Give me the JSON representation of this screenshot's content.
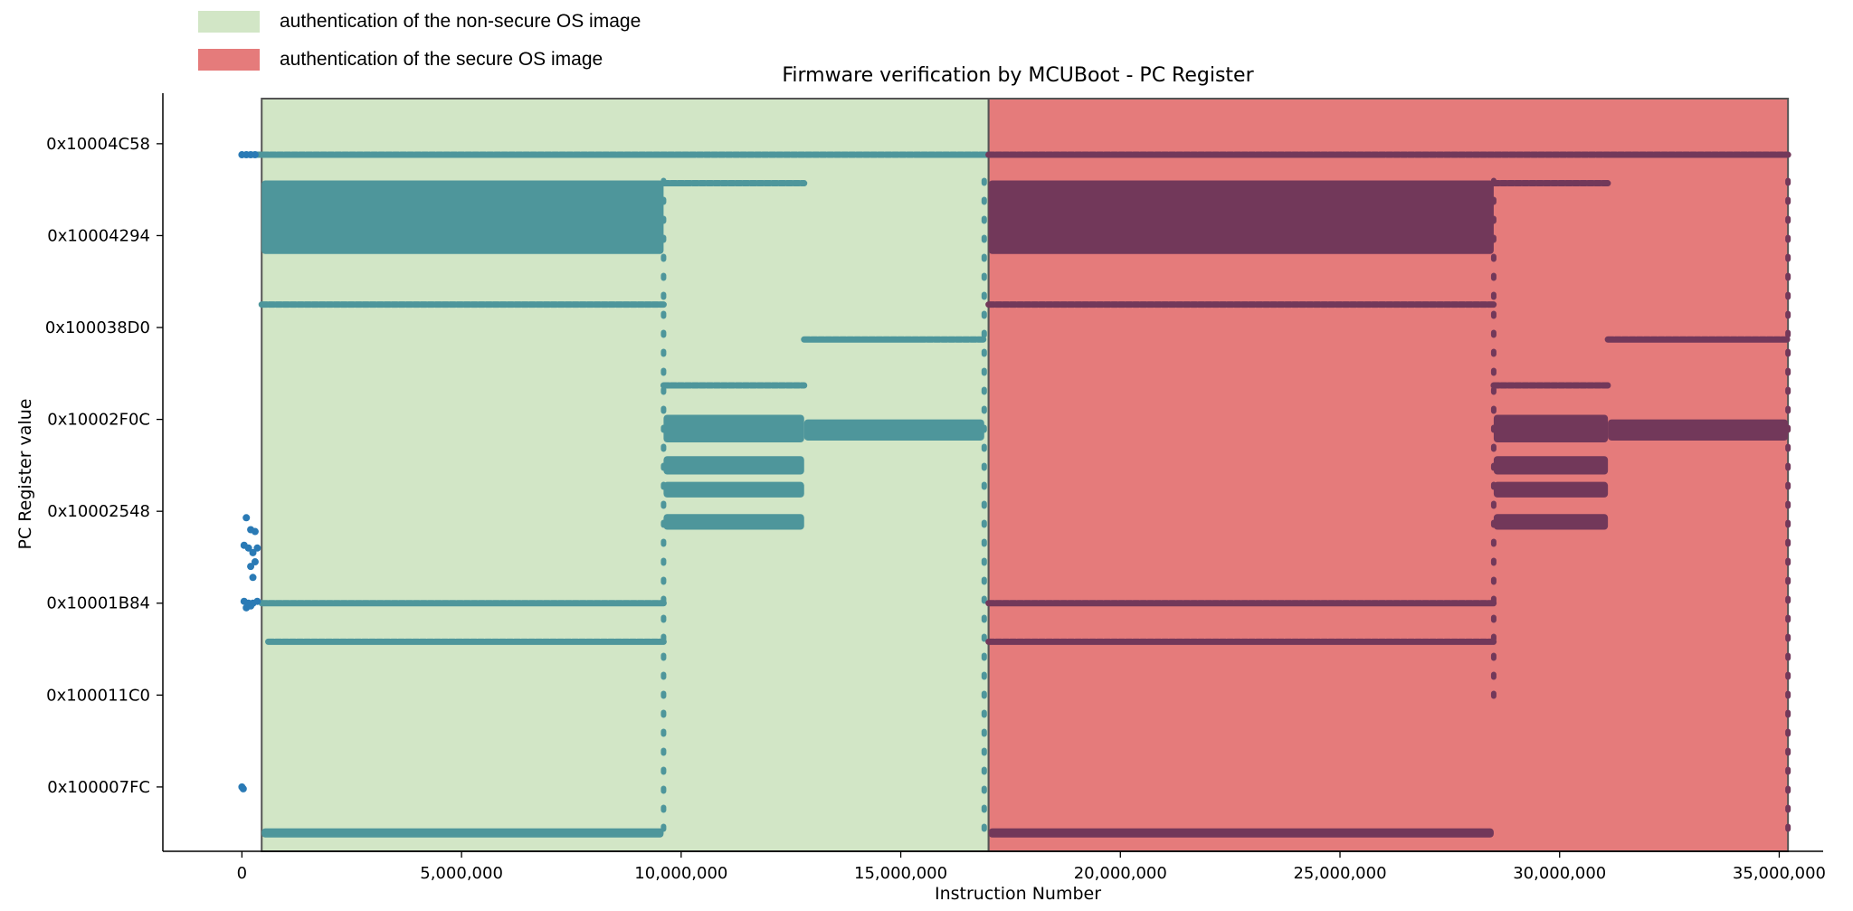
{
  "legend": [
    {
      "label": "authentication of the non-secure OS image",
      "color": "#d2e6c6"
    },
    {
      "label": "authentication of the secure OS image",
      "color": "#e57b7b"
    }
  ],
  "colors": {
    "nonsecure_points": "#4e969b",
    "secure_points": "#72385a",
    "outside_points": "#2a7ab5",
    "frame": "#555555"
  },
  "chart_data": {
    "type": "scatter",
    "title": "Firmware verification by MCUBoot - PC Register",
    "xlabel": "Instruction Number",
    "ylabel": "PC Register value",
    "xlim": [
      -1800000,
      36000000
    ],
    "xticks": [
      0,
      5000000,
      10000000,
      15000000,
      20000000,
      25000000,
      30000000,
      35000000
    ],
    "xtick_labels": [
      "0",
      "5,000,000",
      "10,000,000",
      "15,000,000",
      "20,000,000",
      "25,000,000",
      "30,000,000",
      "35,000,000"
    ],
    "ylim": [
      0.3,
      8.55
    ],
    "yticks": [
      1,
      2,
      3,
      4,
      5,
      6,
      7,
      8
    ],
    "ytick_labels": [
      "0x100007FC",
      "0x100011C0",
      "0x10001B84",
      "0x10002548",
      "0x10002F0C",
      "0x100038D0",
      "0x10004294",
      "0x10004C58"
    ],
    "regions": [
      {
        "name": "non-secure",
        "x_start": 450000,
        "x_end": 17000000
      },
      {
        "name": "secure",
        "x_start": 17000000,
        "x_end": 35200000
      }
    ],
    "series": [
      {
        "name": "non-secure OS image authentication",
        "bands": [
          {
            "type": "band",
            "x0": 450000,
            "x1": 9600000,
            "y0": 6.8,
            "y1": 7.6
          },
          {
            "type": "band",
            "x0": 9600000,
            "x1": 12800000,
            "y0": 4.75,
            "y1": 5.05
          },
          {
            "type": "band",
            "x0": 9600000,
            "x1": 12800000,
            "y0": 4.4,
            "y1": 4.6
          },
          {
            "type": "band",
            "x0": 9600000,
            "x1": 12800000,
            "y0": 4.15,
            "y1": 4.32
          },
          {
            "type": "band",
            "x0": 9600000,
            "x1": 12800000,
            "y0": 3.8,
            "y1": 3.97
          },
          {
            "type": "band",
            "x0": 12800000,
            "x1": 16900000,
            "y0": 4.77,
            "y1": 5.0
          },
          {
            "type": "band",
            "x0": 450000,
            "x1": 9600000,
            "y0": 0.45,
            "y1": 0.55
          },
          {
            "type": "row",
            "x0": 150000,
            "x1": 17000000,
            "y": 7.88
          },
          {
            "type": "row",
            "x0": 450000,
            "x1": 9600000,
            "y": 6.25
          },
          {
            "type": "row",
            "x0": 450000,
            "x1": 9600000,
            "y": 3.0
          },
          {
            "type": "row",
            "x0": 600000,
            "x1": 9600000,
            "y": 2.58
          },
          {
            "type": "row",
            "x0": 9600000,
            "x1": 12800000,
            "y": 5.37
          },
          {
            "type": "row",
            "x0": 9600000,
            "x1": 12800000,
            "y": 7.57
          },
          {
            "type": "row",
            "x0": 12800000,
            "x1": 16900000,
            "y": 5.87
          },
          {
            "type": "vline",
            "x": 9600000,
            "y0": 0.45,
            "y1": 7.6
          },
          {
            "type": "vline",
            "x": 16900000,
            "y0": 0.45,
            "y1": 7.6
          }
        ]
      },
      {
        "name": "secure OS image authentication",
        "bands": [
          {
            "type": "band",
            "x0": 17000000,
            "x1": 28500000,
            "y0": 6.8,
            "y1": 7.6
          },
          {
            "type": "band",
            "x0": 28500000,
            "x1": 31100000,
            "y0": 4.75,
            "y1": 5.05
          },
          {
            "type": "band",
            "x0": 28500000,
            "x1": 31100000,
            "y0": 4.4,
            "y1": 4.6
          },
          {
            "type": "band",
            "x0": 28500000,
            "x1": 31100000,
            "y0": 4.15,
            "y1": 4.32
          },
          {
            "type": "band",
            "x0": 28500000,
            "x1": 31100000,
            "y0": 3.8,
            "y1": 3.97
          },
          {
            "type": "band",
            "x0": 31100000,
            "x1": 35200000,
            "y0": 4.77,
            "y1": 5.0
          },
          {
            "type": "band",
            "x0": 17000000,
            "x1": 28500000,
            "y0": 0.45,
            "y1": 0.55
          },
          {
            "type": "row",
            "x0": 17000000,
            "x1": 35200000,
            "y": 7.88
          },
          {
            "type": "row",
            "x0": 17000000,
            "x1": 28500000,
            "y": 6.25
          },
          {
            "type": "row",
            "x0": 17000000,
            "x1": 28500000,
            "y": 3.0
          },
          {
            "type": "row",
            "x0": 17000000,
            "x1": 28500000,
            "y": 2.58
          },
          {
            "type": "row",
            "x0": 28500000,
            "x1": 31100000,
            "y": 5.37
          },
          {
            "type": "row",
            "x0": 28500000,
            "x1": 31100000,
            "y": 7.57
          },
          {
            "type": "row",
            "x0": 31100000,
            "x1": 35200000,
            "y": 5.87
          },
          {
            "type": "vline",
            "x": 28500000,
            "y0": 1.9,
            "y1": 7.6
          },
          {
            "type": "vline",
            "x": 35200000,
            "y0": 0.45,
            "y1": 7.6
          }
        ]
      },
      {
        "name": "before authentication",
        "points": [
          [
            0,
            7.88
          ],
          [
            100000,
            7.88
          ],
          [
            200000,
            7.88
          ],
          [
            300000,
            7.88
          ],
          [
            100000,
            3.93
          ],
          [
            200000,
            3.8
          ],
          [
            300000,
            3.78
          ],
          [
            50000,
            3.63
          ],
          [
            150000,
            3.6
          ],
          [
            250000,
            3.55
          ],
          [
            350000,
            3.6
          ],
          [
            200000,
            3.4
          ],
          [
            300000,
            3.45
          ],
          [
            250000,
            3.28
          ],
          [
            50000,
            3.02
          ],
          [
            150000,
            3.0
          ],
          [
            250000,
            3.0
          ],
          [
            350000,
            3.02
          ],
          [
            100000,
            2.95
          ],
          [
            200000,
            2.97
          ],
          [
            0,
            1.0
          ],
          [
            30000,
            0.98
          ]
        ]
      }
    ]
  }
}
